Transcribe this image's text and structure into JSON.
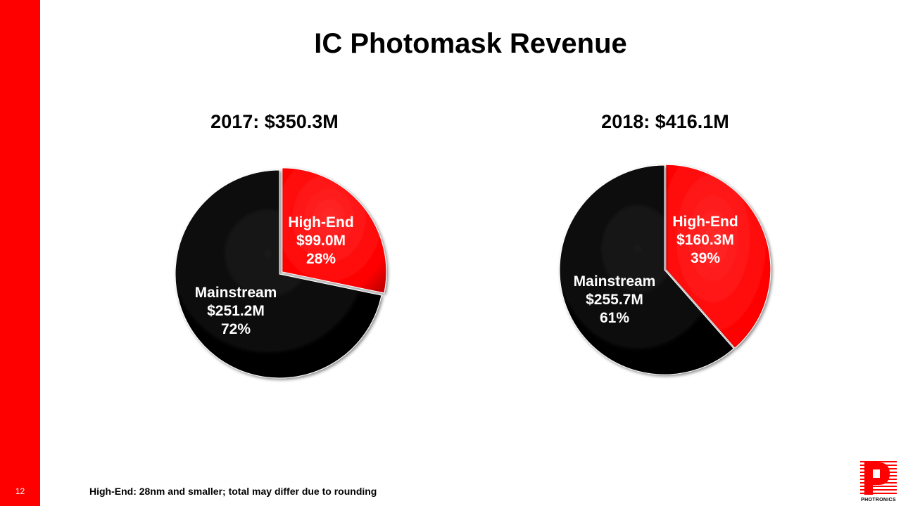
{
  "slide": {
    "title": "IC Photomask Revenue",
    "page_number": "12",
    "footnote": "High-End: 28nm and smaller; total may  differ due to rounding",
    "logo_text": "PHOTRONICS"
  },
  "colors": {
    "accent": "#ff0000",
    "high_end": "#ff0000",
    "mainstream": "#000000"
  },
  "chart_data": [
    {
      "type": "pie",
      "title": "2017: $350.3M",
      "categories": [
        "High-End",
        "Mainstream"
      ],
      "values": [
        99.0,
        251.2
      ],
      "percents": [
        28,
        72
      ],
      "labels": [
        [
          "High-End",
          "$99.0M",
          "28%"
        ],
        [
          "Mainstream",
          "$251.2M",
          "72%"
        ]
      ],
      "colors": [
        "#ff0000",
        "#000000"
      ],
      "exploded": "High-End"
    },
    {
      "type": "pie",
      "title": "2018: $416.1M",
      "categories": [
        "High-End",
        "Mainstream"
      ],
      "values": [
        160.3,
        255.7
      ],
      "percents": [
        39,
        61
      ],
      "labels": [
        [
          "High-End",
          "$160.3M",
          "39%"
        ],
        [
          "Mainstream",
          "$255.7M",
          "61%"
        ]
      ],
      "colors": [
        "#ff0000",
        "#000000"
      ],
      "exploded": "High-End"
    }
  ]
}
